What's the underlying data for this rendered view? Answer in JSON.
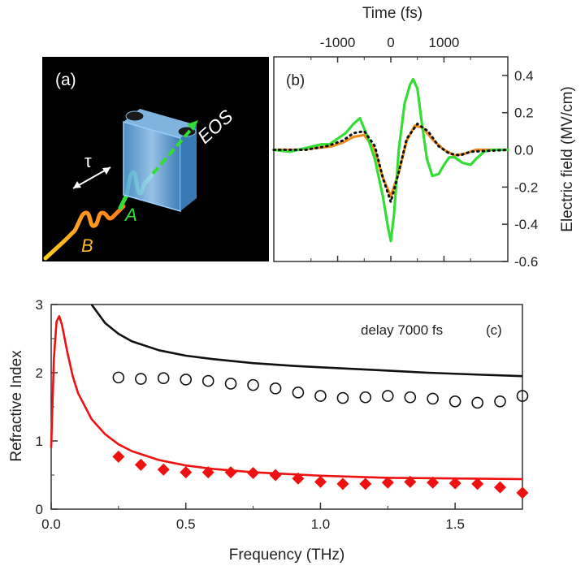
{
  "colors": {
    "green": "#33dd33",
    "orange": "#f08c1e",
    "red": "#ee1111",
    "black": "#111111",
    "panel_a_bg": "#000000",
    "crystal": "#6fb8ee",
    "pulse_b_start": "#ffcc22",
    "pulse_b_end": "#ff7a1a"
  },
  "panel_a": {
    "label": "(a)",
    "tau": "τ",
    "pulse_b": "B",
    "pulse_a": "A",
    "eos": "EOS"
  },
  "chart_data": [
    {
      "id": "b",
      "type": "line",
      "panel_label": "(b)",
      "xlabel": "Time (fs)",
      "ylabel": "Electric field (MV/cm)",
      "xaxis_position": "top",
      "yaxis_position": "right",
      "xlim": [
        -2200,
        2200
      ],
      "ylim": [
        -0.6,
        0.5
      ],
      "xticks": [
        -1000,
        0,
        1000
      ],
      "xtick_labels": [
        "-1000",
        "0",
        "1000"
      ],
      "yticks": [
        -0.6,
        -0.4,
        -0.2,
        0.0,
        0.2,
        0.4
      ],
      "ytick_labels": [
        "-0.6",
        "-0.4",
        "-0.2",
        "0.0",
        "0.2",
        "0.4"
      ],
      "series": [
        {
          "style": "solid",
          "color": "#f08c1e",
          "x": [
            -2200,
            -1800,
            -1400,
            -1100,
            -900,
            -700,
            -500,
            -300,
            -150,
            0,
            150,
            300,
            450,
            600,
            800,
            1000,
            1200,
            1400,
            1600,
            2200
          ],
          "y": [
            0.0,
            0.0,
            0.01,
            0.02,
            0.04,
            0.07,
            0.08,
            0.0,
            -0.15,
            -0.25,
            -0.12,
            0.05,
            0.13,
            0.12,
            0.05,
            0.0,
            -0.03,
            -0.02,
            0.0,
            0.0
          ]
        },
        {
          "style": "solid",
          "color": "#33dd33",
          "x": [
            -2200,
            -1900,
            -1600,
            -1300,
            -1150,
            -1000,
            -850,
            -700,
            -580,
            -450,
            -300,
            -150,
            -50,
            0,
            60,
            150,
            260,
            360,
            420,
            500,
            580,
            680,
            780,
            900,
            1000,
            1100,
            1200,
            1350,
            1500,
            1600,
            1750,
            1900,
            2050,
            2200
          ],
          "y": [
            0.0,
            -0.01,
            0.01,
            0.03,
            0.03,
            0.06,
            0.09,
            0.14,
            0.17,
            0.08,
            -0.05,
            -0.25,
            -0.42,
            -0.49,
            -0.35,
            0.0,
            0.25,
            0.35,
            0.38,
            0.33,
            0.15,
            -0.05,
            -0.14,
            -0.13,
            -0.08,
            -0.04,
            -0.04,
            -0.07,
            -0.08,
            -0.05,
            -0.01,
            0.0,
            0.0,
            0.0
          ]
        },
        {
          "style": "dotted",
          "color": "#111111",
          "x": [
            -2200,
            -1600,
            -1200,
            -900,
            -700,
            -500,
            -300,
            -150,
            0,
            150,
            300,
            500,
            700,
            900,
            1100,
            1300,
            1500,
            2200
          ],
          "y": [
            0.0,
            0.0,
            0.02,
            0.05,
            0.09,
            0.1,
            0.02,
            -0.15,
            -0.28,
            -0.12,
            0.06,
            0.14,
            0.1,
            0.02,
            -0.02,
            -0.03,
            -0.01,
            0.0
          ]
        }
      ]
    },
    {
      "id": "c",
      "type": "line+scatter",
      "panel_label": "(c)",
      "annotation": "delay 7000 fs",
      "xlabel": "Frequency (THz)",
      "ylabel": "Refractive Index",
      "xlim": [
        0,
        1.75
      ],
      "ylim": [
        0,
        3
      ],
      "xticks": [
        0.0,
        0.5,
        1.0,
        1.5
      ],
      "xtick_labels": [
        "0.0",
        "0.5",
        "1.0",
        "1.5"
      ],
      "yticks": [
        0,
        1,
        2,
        3
      ],
      "ytick_labels": [
        "0",
        "1",
        "2",
        "3"
      ],
      "series": [
        {
          "kind": "line",
          "color": "#111111",
          "x": [
            0.15,
            0.2,
            0.25,
            0.3,
            0.4,
            0.5,
            0.6,
            0.75,
            0.9,
            1.0,
            1.2,
            1.4,
            1.6,
            1.75
          ],
          "y": [
            3.0,
            2.73,
            2.57,
            2.46,
            2.33,
            2.25,
            2.2,
            2.14,
            2.1,
            2.08,
            2.04,
            2.0,
            1.97,
            1.95
          ]
        },
        {
          "kind": "line",
          "color": "#ee1111",
          "x": [
            0.0,
            0.01,
            0.02,
            0.03,
            0.04,
            0.06,
            0.08,
            0.1,
            0.15,
            0.2,
            0.25,
            0.3,
            0.4,
            0.5,
            0.6,
            0.75,
            1.0,
            1.25,
            1.5,
            1.75
          ],
          "y": [
            0.9,
            2.2,
            2.75,
            2.83,
            2.7,
            2.3,
            1.95,
            1.7,
            1.32,
            1.1,
            0.95,
            0.85,
            0.72,
            0.64,
            0.59,
            0.54,
            0.49,
            0.46,
            0.45,
            0.44
          ]
        },
        {
          "kind": "scatter",
          "marker": "open-circle",
          "color": "#111111",
          "x": [
            0.25,
            0.333,
            0.417,
            0.5,
            0.583,
            0.667,
            0.75,
            0.833,
            0.917,
            1.0,
            1.083,
            1.167,
            1.25,
            1.333,
            1.417,
            1.5,
            1.583,
            1.667,
            1.75
          ],
          "y": [
            1.93,
            1.91,
            1.92,
            1.9,
            1.88,
            1.84,
            1.82,
            1.77,
            1.71,
            1.66,
            1.63,
            1.64,
            1.66,
            1.64,
            1.62,
            1.58,
            1.56,
            1.58,
            1.66
          ]
        },
        {
          "kind": "scatter",
          "marker": "filled-diamond",
          "color": "#ee1111",
          "x": [
            0.25,
            0.333,
            0.417,
            0.5,
            0.583,
            0.667,
            0.75,
            0.833,
            0.917,
            1.0,
            1.083,
            1.167,
            1.25,
            1.333,
            1.417,
            1.5,
            1.583,
            1.667,
            1.75
          ],
          "y": [
            0.77,
            0.65,
            0.58,
            0.54,
            0.54,
            0.54,
            0.53,
            0.5,
            0.45,
            0.4,
            0.37,
            0.37,
            0.39,
            0.4,
            0.39,
            0.38,
            0.37,
            0.32,
            0.24
          ]
        }
      ]
    }
  ]
}
